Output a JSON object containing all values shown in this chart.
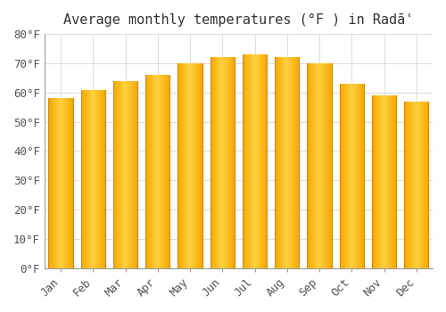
{
  "title": "Average monthly temperatures (°F ) in Radāʿ",
  "months": [
    "Jan",
    "Feb",
    "Mar",
    "Apr",
    "May",
    "Jun",
    "Jul",
    "Aug",
    "Sep",
    "Oct",
    "Nov",
    "Dec"
  ],
  "values": [
    58,
    61,
    64,
    66,
    70,
    72,
    73,
    72,
    70,
    63,
    59,
    57
  ],
  "bar_color_edge": "#F5A800",
  "bar_color_center": "#FFD040",
  "ylim": [
    0,
    80
  ],
  "yticks": [
    0,
    10,
    20,
    30,
    40,
    50,
    60,
    70,
    80
  ],
  "background_color": "#FFFFFF",
  "grid_color": "#DDDDDD",
  "font_family": "monospace",
  "title_fontsize": 11,
  "tick_fontsize": 9,
  "bar_width": 0.75
}
